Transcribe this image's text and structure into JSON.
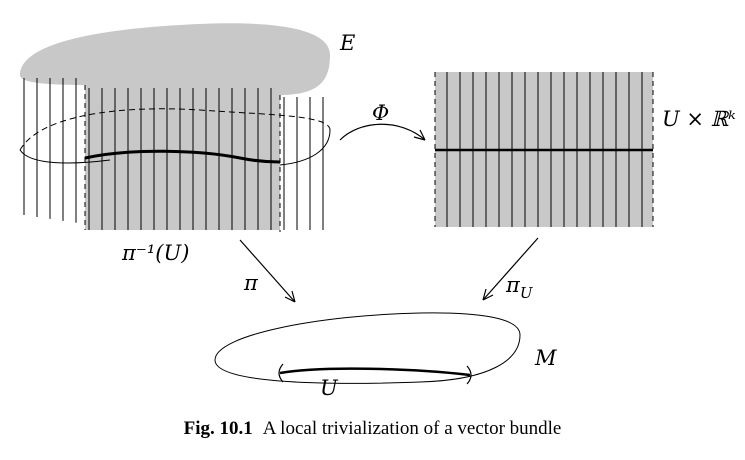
{
  "labels": {
    "total_space": "E",
    "preimage": "π⁻¹(U)",
    "trivialization": "Φ",
    "product_space": "U × ℝᵏ",
    "projection": "π",
    "projection_U": "π",
    "projection_U_subscript": "U",
    "base_manifold": "M",
    "open_set": "U"
  },
  "caption": {
    "number": "Fig. 10.1",
    "text": "A local trivialization of a vector bundle"
  },
  "colors": {
    "shade": "#c8c8c8",
    "stroke": "#000000"
  }
}
